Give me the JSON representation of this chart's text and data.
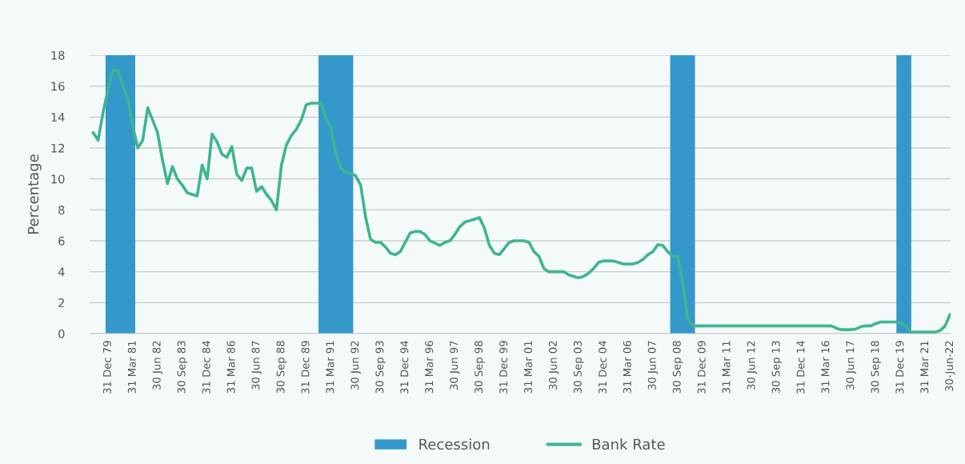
{
  "chart_data": {
    "type": "line",
    "ylabel": "Percentage",
    "x": [
      "1979-03-31",
      "1979-06-30",
      "1979-09-30",
      "1979-12-31",
      "1980-03-31",
      "1980-06-30",
      "1980-09-30",
      "1980-12-31",
      "1981-03-31",
      "1981-06-30",
      "1981-09-30",
      "1981-12-31",
      "1982-03-31",
      "1982-06-30",
      "1982-09-30",
      "1982-12-31",
      "1983-03-31",
      "1983-06-30",
      "1983-09-30",
      "1983-12-31",
      "1984-03-31",
      "1984-06-30",
      "1984-09-30",
      "1984-12-31",
      "1985-03-31",
      "1985-06-30",
      "1985-09-30",
      "1985-12-31",
      "1986-03-31",
      "1986-06-30",
      "1986-09-30",
      "1986-12-31",
      "1987-03-31",
      "1987-06-30",
      "1987-09-30",
      "1987-12-31",
      "1988-03-31",
      "1988-06-30",
      "1988-09-30",
      "1988-12-31",
      "1989-03-31",
      "1989-06-30",
      "1989-09-30",
      "1989-12-31",
      "1990-03-31",
      "1990-06-30",
      "1990-09-30",
      "1990-12-31",
      "1991-03-31",
      "1991-06-30",
      "1991-09-30",
      "1991-12-31",
      "1992-03-31",
      "1992-06-30",
      "1992-09-30",
      "1992-12-31",
      "1993-03-31",
      "1993-06-30",
      "1993-09-30",
      "1993-12-31",
      "1994-03-31",
      "1994-06-30",
      "1994-09-30",
      "1994-12-31",
      "1995-03-31",
      "1995-06-30",
      "1995-09-30",
      "1995-12-31",
      "1996-03-31",
      "1996-06-30",
      "1996-09-30",
      "1996-12-31",
      "1997-03-31",
      "1997-06-30",
      "1997-09-30",
      "1997-12-31",
      "1998-03-31",
      "1998-06-30",
      "1998-09-30",
      "1998-12-31",
      "1999-03-31",
      "1999-06-30",
      "1999-09-30",
      "1999-12-31",
      "2000-03-31",
      "2000-06-30",
      "2000-09-30",
      "2000-12-31",
      "2001-03-31",
      "2001-06-30",
      "2001-09-30",
      "2001-12-31",
      "2002-03-31",
      "2002-06-30",
      "2002-09-30",
      "2002-12-31",
      "2003-03-31",
      "2003-06-30",
      "2003-09-30",
      "2003-12-31",
      "2004-03-31",
      "2004-06-30",
      "2004-09-30",
      "2004-12-31",
      "2005-03-31",
      "2005-06-30",
      "2005-09-30",
      "2005-12-31",
      "2006-03-31",
      "2006-06-30",
      "2006-09-30",
      "2006-12-31",
      "2007-03-31",
      "2007-06-30",
      "2007-09-30",
      "2007-12-31",
      "2008-03-31",
      "2008-06-30",
      "2008-09-30",
      "2008-12-31",
      "2009-03-31",
      "2009-06-30",
      "2009-09-30",
      "2009-12-31",
      "2010-03-31",
      "2010-06-30",
      "2010-09-30",
      "2010-12-31",
      "2011-03-31",
      "2011-06-30",
      "2011-09-30",
      "2011-12-31",
      "2012-03-31",
      "2012-06-30",
      "2012-09-30",
      "2012-12-31",
      "2013-03-31",
      "2013-06-30",
      "2013-09-30",
      "2013-12-31",
      "2014-03-31",
      "2014-06-30",
      "2014-09-30",
      "2014-12-31",
      "2015-03-31",
      "2015-06-30",
      "2015-09-30",
      "2015-12-31",
      "2016-03-31",
      "2016-06-30",
      "2016-09-30",
      "2016-12-31",
      "2017-03-31",
      "2017-06-30",
      "2017-09-30",
      "2017-12-31",
      "2018-03-31",
      "2018-06-30",
      "2018-09-30",
      "2018-12-31",
      "2019-03-31",
      "2019-06-30",
      "2019-09-30",
      "2019-12-31",
      "2020-03-31",
      "2020-06-30",
      "2020-09-30",
      "2020-12-31",
      "2021-03-31",
      "2021-06-30",
      "2021-09-30",
      "2021-12-31",
      "2022-03-31",
      "2022-06-30"
    ],
    "series": [
      {
        "name": "Bank Rate",
        "color": "#3db591",
        "values": [
          13.0,
          12.5,
          14.3,
          15.8,
          17.0,
          17.0,
          16.0,
          15.2,
          13.4,
          12.0,
          12.5,
          14.6,
          13.8,
          13.0,
          11.2,
          9.7,
          10.8,
          10.0,
          9.6,
          9.1,
          9.0,
          8.9,
          10.9,
          10.0,
          12.9,
          12.4,
          11.6,
          11.4,
          12.1,
          10.3,
          9.9,
          10.7,
          10.7,
          9.2,
          9.5,
          9.0,
          8.6,
          8.0,
          10.9,
          12.2,
          12.8,
          13.2,
          13.8,
          14.8,
          14.9,
          14.9,
          14.9,
          13.9,
          13.3,
          11.6,
          10.7,
          10.4,
          10.4,
          10.2,
          9.6,
          7.5,
          6.1,
          5.9,
          5.9,
          5.6,
          5.2,
          5.1,
          5.3,
          5.9,
          6.5,
          6.6,
          6.6,
          6.4,
          6.0,
          5.85,
          5.7,
          5.9,
          6.0,
          6.4,
          6.9,
          7.2,
          7.3,
          7.4,
          7.5,
          6.8,
          5.7,
          5.2,
          5.1,
          5.5,
          5.9,
          6.0,
          6.0,
          6.0,
          5.9,
          5.3,
          5.0,
          4.2,
          4.0,
          4.0,
          4.0,
          4.0,
          3.8,
          3.7,
          3.6,
          3.7,
          3.9,
          4.2,
          4.6,
          4.7,
          4.7,
          4.7,
          4.6,
          4.5,
          4.5,
          4.5,
          4.6,
          4.8,
          5.1,
          5.3,
          5.75,
          5.7,
          5.3,
          5.0,
          5.0,
          3.3,
          1.0,
          0.5,
          0.5,
          0.5,
          0.5,
          0.5,
          0.5,
          0.5,
          0.5,
          0.5,
          0.5,
          0.5,
          0.5,
          0.5,
          0.5,
          0.5,
          0.5,
          0.5,
          0.5,
          0.5,
          0.5,
          0.5,
          0.5,
          0.5,
          0.5,
          0.5,
          0.5,
          0.5,
          0.5,
          0.5,
          0.35,
          0.25,
          0.25,
          0.25,
          0.3,
          0.45,
          0.5,
          0.5,
          0.65,
          0.75,
          0.75,
          0.75,
          0.75,
          0.7,
          0.5,
          0.1,
          0.1,
          0.1,
          0.1,
          0.1,
          0.1,
          0.2,
          0.5,
          1.25
        ]
      }
    ],
    "bands": [
      {
        "axis": "x",
        "from": "1979-11-15",
        "to": "1981-05-15",
        "label": "Recession",
        "color": "#3498cb"
      },
      {
        "axis": "x",
        "from": "1990-08-15",
        "to": "1992-05-15",
        "color": "#3498cb"
      },
      {
        "axis": "x",
        "from": "2008-05-15",
        "to": "2009-08-15",
        "color": "#3498cb"
      },
      {
        "axis": "x",
        "from": "2019-10-15",
        "to": "2020-07-15",
        "color": "#3498cb"
      }
    ],
    "xlim": [
      "1979-01-25",
      "2022-07-10"
    ],
    "xticks": [
      {
        "value": "1979-12-31",
        "label": "31 Dec 79"
      },
      {
        "value": "1981-03-31",
        "label": "31 Mar 81"
      },
      {
        "value": "1982-06-30",
        "label": "30 Jun 82"
      },
      {
        "value": "1983-09-30",
        "label": "30 Sep 83"
      },
      {
        "value": "1984-12-31",
        "label": "31 Dec 84"
      },
      {
        "value": "1986-03-31",
        "label": "31 Mar 86"
      },
      {
        "value": "1987-06-30",
        "label": "30 Jun 87"
      },
      {
        "value": "1988-09-30",
        "label": "30 Sep 88"
      },
      {
        "value": "1989-12-31",
        "label": "31 Dec 89"
      },
      {
        "value": "1991-03-31",
        "label": "31 Mar 91"
      },
      {
        "value": "1992-06-30",
        "label": "30 Jun 92"
      },
      {
        "value": "1993-09-30",
        "label": "30 Sep 93"
      },
      {
        "value": "1994-12-31",
        "label": "31 Dec 94"
      },
      {
        "value": "1996-03-31",
        "label": "31 Mar 96"
      },
      {
        "value": "1997-06-30",
        "label": "30 Jun 97"
      },
      {
        "value": "1998-09-30",
        "label": "30 Sep 98"
      },
      {
        "value": "1999-12-31",
        "label": "31 Dec 99"
      },
      {
        "value": "2001-03-31",
        "label": "31 Mar 01"
      },
      {
        "value": "2002-06-30",
        "label": "30 Jun 02"
      },
      {
        "value": "2003-09-30",
        "label": "30 Sep 03"
      },
      {
        "value": "2004-12-31",
        "label": "31 Dec 04"
      },
      {
        "value": "2006-03-31",
        "label": "31 Mar 06"
      },
      {
        "value": "2007-06-30",
        "label": "30 Jun 07"
      },
      {
        "value": "2008-09-30",
        "label": "30 Sep 08"
      },
      {
        "value": "2009-12-31",
        "label": "31 Dec 09"
      },
      {
        "value": "2011-03-31",
        "label": "31 Mar 11"
      },
      {
        "value": "2012-06-30",
        "label": "30 Jun 12"
      },
      {
        "value": "2013-09-30",
        "label": "30 Sep 13"
      },
      {
        "value": "2014-12-31",
        "label": "31 Dec 14"
      },
      {
        "value": "2016-03-31",
        "label": "31 Mar 16"
      },
      {
        "value": "2017-06-30",
        "label": "30 Jun 17"
      },
      {
        "value": "2018-09-30",
        "label": "30 Sep 18"
      },
      {
        "value": "2019-12-31",
        "label": "31 Dec 19"
      },
      {
        "value": "2021-03-31",
        "label": "31 Mar 21"
      },
      {
        "value": "2022-06-30",
        "label": "30-Jun-22"
      }
    ],
    "ylim": [
      0,
      18
    ],
    "yticks": [
      0,
      2,
      4,
      6,
      8,
      10,
      12,
      14,
      16,
      18
    ],
    "grid": "y",
    "legend": "bottom",
    "marker": "none",
    "line_style": "solid"
  }
}
